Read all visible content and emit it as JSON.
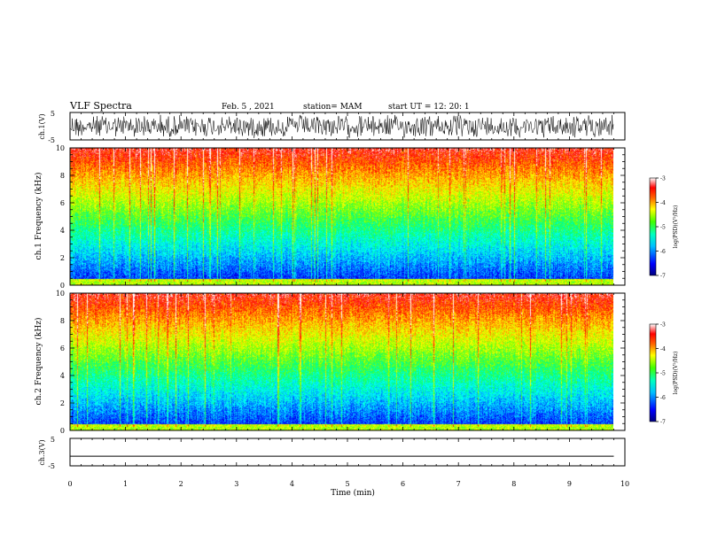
{
  "header": {
    "title": "VLF Spectra",
    "date": "Feb. 5 , 2021",
    "station": "station= MAM",
    "start": "start UT = 12: 20: 1"
  },
  "chart_data": [
    {
      "type": "line",
      "panel": "waveform-ch1",
      "ylabel": "ch.1(V)",
      "ylim": [
        -5,
        5
      ],
      "yticks": [
        "5",
        "-5"
      ],
      "description_pattern": "dense_noise"
    },
    {
      "type": "heatmap",
      "panel": "spectrogram-ch1",
      "ylabel": "ch.1 Frequency (kHz)",
      "ylim": [
        0,
        10
      ],
      "yticks": [
        "0",
        "2",
        "4",
        "6",
        "8",
        "10"
      ],
      "xlim": [
        0,
        9.8
      ],
      "colorbar": {
        "label": "log(PSD)(V²/Hz)",
        "range": [
          -7,
          -3
        ],
        "ticks": [
          "-3",
          "-4",
          "-5",
          "-6",
          "-7"
        ]
      },
      "colormap": [
        "#00007f",
        "#0000ff",
        "#0080ff",
        "#00ffff",
        "#00ff80",
        "#80ff00",
        "#ffff00",
        "#ff8000",
        "#ff0000",
        "#ffffff"
      ]
    },
    {
      "type": "heatmap",
      "panel": "spectrogram-ch2",
      "ylabel": "ch.2 Frequency (kHz)",
      "ylim": [
        0,
        10
      ],
      "yticks": [
        "0",
        "2",
        "4",
        "6",
        "8",
        "10"
      ],
      "xlim": [
        0,
        9.8
      ],
      "colorbar": {
        "label": "log(PSD)(V²/Hz)",
        "range": [
          -7,
          -3
        ],
        "ticks": [
          "-3",
          "-4",
          "-5",
          "-6",
          "-7"
        ]
      },
      "colormap": [
        "#00007f",
        "#0000ff",
        "#0080ff",
        "#00ffff",
        "#00ff80",
        "#80ff00",
        "#ffff00",
        "#ff8000",
        "#ff0000",
        "#ffffff"
      ]
    },
    {
      "type": "line",
      "panel": "waveform-ch3",
      "ylabel": "ch.3(V)",
      "ylim": [
        -5,
        5
      ],
      "yticks": [
        "5",
        "-5"
      ],
      "x": [
        0,
        9.8
      ],
      "y": [
        -1.5,
        -1.5
      ]
    }
  ],
  "xaxis": {
    "label": "Time (min)",
    "range": [
      0,
      10
    ],
    "ticks": [
      "0",
      "1",
      "2",
      "3",
      "4",
      "5",
      "6",
      "7",
      "8",
      "9",
      "10"
    ]
  }
}
